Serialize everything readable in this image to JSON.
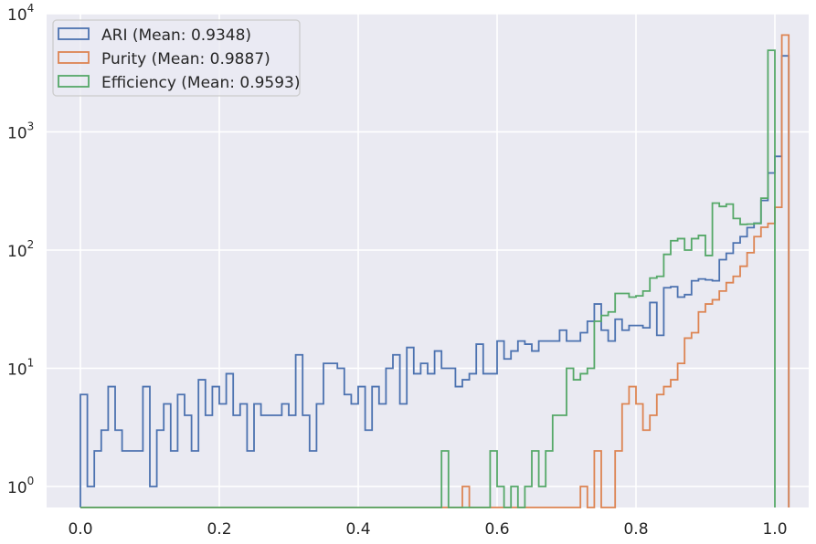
{
  "chart_data": {
    "type": "histogram",
    "title": "",
    "xlabel": "",
    "ylabel": "",
    "yscale": "log",
    "xlim": [
      -0.05,
      1.05
    ],
    "ylim": [
      0.7,
      10000
    ],
    "bin_width": 0.01,
    "bin_start": 0.0,
    "grid": true,
    "legend_position": "upper left",
    "x_ticks": [
      "0.0",
      "0.2",
      "0.4",
      "0.6",
      "0.8",
      "1.0"
    ],
    "x_tick_values": [
      0.0,
      0.2,
      0.4,
      0.6,
      0.8,
      1.0
    ],
    "y_ticks": [
      {
        "base": "10",
        "exp": "0",
        "value": 1
      },
      {
        "base": "10",
        "exp": "1",
        "value": 10
      },
      {
        "base": "10",
        "exp": "2",
        "value": 100
      },
      {
        "base": "10",
        "exp": "3",
        "value": 1000
      },
      {
        "base": "10",
        "exp": "4",
        "value": 10000
      }
    ],
    "series": [
      {
        "name": "ARI (Mean: 0.9348)",
        "color": "#4c72b0",
        "values": [
          6,
          1,
          2,
          3,
          7,
          3,
          2,
          2,
          2,
          7,
          1,
          3,
          5,
          2,
          6,
          4,
          2,
          8,
          4,
          7,
          5,
          9,
          4,
          5,
          2,
          5,
          4,
          4,
          4,
          5,
          4,
          13,
          4,
          2,
          5,
          11,
          11,
          10,
          6,
          5,
          7,
          3,
          7,
          5,
          10,
          13,
          5,
          15,
          9,
          11,
          9,
          14,
          10,
          10,
          7,
          8,
          9,
          16,
          9,
          9,
          17,
          12,
          14,
          17,
          16,
          14,
          17,
          17,
          17,
          21,
          17,
          17,
          20,
          25,
          35,
          21,
          17,
          26,
          21,
          23,
          23,
          22,
          36,
          19,
          48,
          49,
          40,
          42,
          55,
          57,
          56,
          55,
          83,
          94,
          115,
          130,
          155,
          169,
          263,
          449,
          621,
          4400
        ]
      },
      {
        "name": "Purity (Mean: 0.9887)",
        "color": "#dd8452",
        "values": [
          0,
          0,
          0,
          0,
          0,
          0,
          0,
          0,
          0,
          0,
          0,
          0,
          0,
          0,
          0,
          0,
          0,
          0,
          0,
          0,
          0,
          0,
          0,
          0,
          0,
          0,
          0,
          0,
          0,
          0,
          0,
          0,
          0,
          0,
          0,
          0,
          0,
          0,
          0,
          0,
          0,
          0,
          0,
          0,
          0,
          0,
          0,
          0,
          0,
          0,
          0,
          0,
          0,
          0,
          0,
          1,
          0,
          0,
          0,
          0,
          0,
          0,
          0,
          0,
          0,
          0,
          0,
          0,
          0,
          0,
          0,
          0,
          1,
          0,
          2,
          0,
          0,
          2,
          5,
          7,
          5,
          3,
          4,
          6,
          7,
          8,
          11,
          18,
          20,
          30,
          35,
          38,
          45,
          53,
          60,
          73,
          95,
          130,
          156,
          168,
          230,
          6600
        ]
      },
      {
        "name": "Efficiency (Mean: 0.9593)",
        "color": "#55a868",
        "values": [
          0,
          0,
          0,
          0,
          0,
          0,
          0,
          0,
          0,
          0,
          0,
          0,
          0,
          0,
          0,
          0,
          0,
          0,
          0,
          0,
          0,
          0,
          0,
          0,
          0,
          0,
          0,
          0,
          0,
          0,
          0,
          0,
          0,
          0,
          0,
          0,
          0,
          0,
          0,
          0,
          0,
          0,
          0,
          0,
          0,
          0,
          0,
          0,
          0,
          0,
          0,
          0,
          2,
          0,
          0,
          0,
          0,
          0,
          0,
          2,
          1,
          0,
          1,
          0,
          1,
          2,
          1,
          2,
          4,
          4,
          10,
          8,
          9,
          10,
          25,
          28,
          30,
          43,
          43,
          40,
          41,
          45,
          58,
          60,
          92,
          120,
          125,
          100,
          125,
          133,
          90,
          250,
          234,
          245,
          185,
          165,
          166,
          168,
          275,
          4900
        ]
      }
    ]
  },
  "legend": {
    "items": [
      {
        "label": "ARI (Mean: 0.9348)",
        "color": "#4c72b0"
      },
      {
        "label": "Purity (Mean: 0.9887)",
        "color": "#dd8452"
      },
      {
        "label": "Efficiency (Mean: 0.9593)",
        "color": "#55a868"
      }
    ]
  },
  "style": {
    "plot_bg": "#eaeaf2",
    "grid_color": "#ffffff"
  }
}
